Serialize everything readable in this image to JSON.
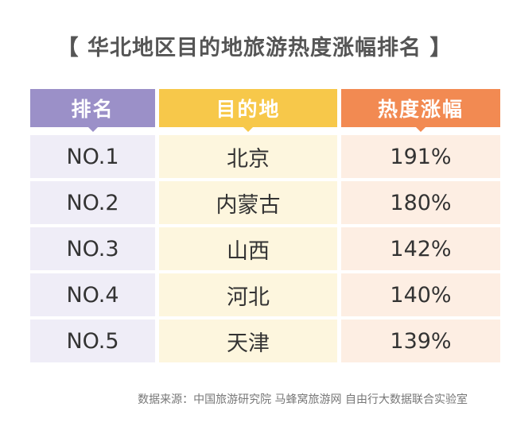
{
  "title": "【 华北地区目的地旅游热度涨幅排名 】",
  "table": {
    "headers": [
      "排名",
      "目的地",
      "热度涨幅"
    ],
    "rows": [
      {
        "rank": "NO.1",
        "destination": "北京",
        "increase": "191%"
      },
      {
        "rank": "NO.2",
        "destination": "内蒙古",
        "increase": "180%"
      },
      {
        "rank": "NO.3",
        "destination": "山西",
        "increase": "142%"
      },
      {
        "rank": "NO.4",
        "destination": "河北",
        "increase": "140%"
      },
      {
        "rank": "NO.5",
        "destination": "天津",
        "increase": "139%"
      }
    ]
  },
  "source": "数据来源：中国旅游研究院 马蜂窝旅游网 自由行大数据联合实验室",
  "colors": {
    "rank_header": "#9b90c8",
    "destination_header": "#f7c84a",
    "increase_header": "#f28a52"
  }
}
